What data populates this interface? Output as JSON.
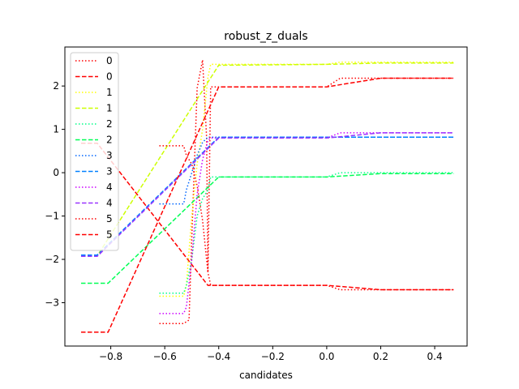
{
  "chart_data": {
    "type": "line",
    "title": "robust_z_duals",
    "xlabel": "candidates",
    "ylabel": "",
    "xlim": [
      -0.97,
      0.52
    ],
    "ylim": [
      -4.0,
      2.9
    ],
    "xticks": [
      -0.8,
      -0.6,
      -0.4,
      -0.2,
      0.0,
      0.2,
      0.4
    ],
    "xtick_labels": [
      "−0.8",
      "−0.6",
      "−0.4",
      "−0.2",
      "0.0",
      "0.2",
      "0.4"
    ],
    "yticks": [
      -3,
      -2,
      -1,
      0,
      1,
      2
    ],
    "ytick_labels": [
      "−3",
      "−2",
      "−1",
      "0",
      "1",
      "2"
    ],
    "legend_position": "upper-left",
    "series": [
      {
        "name": "0",
        "style": "dotted",
        "color": "#ff0000",
        "x": [
          -0.62,
          -0.53,
          -0.51,
          -0.5,
          -0.48,
          -0.46,
          -0.445,
          -0.44,
          -0.43,
          0.0,
          0.05,
          0.2,
          0.47
        ],
        "y": [
          -3.48,
          -3.48,
          -3.4,
          -1.5,
          1.95,
          2.6,
          0.8,
          -2.3,
          -2.6,
          -2.6,
          -2.7,
          -2.7,
          -2.7
        ]
      },
      {
        "name": "0",
        "style": "dashed",
        "color": "#ff0000",
        "x": [
          -0.91,
          -0.85,
          -0.44,
          0.0,
          0.2,
          0.47
        ],
        "y": [
          0.68,
          0.68,
          -2.6,
          -2.6,
          -2.7,
          -2.7
        ]
      },
      {
        "name": "1",
        "style": "dotted",
        "color": "#ffff00",
        "x": [
          -0.62,
          -0.53,
          -0.52,
          -0.5,
          -0.48,
          -0.46,
          -0.44,
          -0.43,
          0.0,
          0.05,
          0.2,
          0.47
        ],
        "y": [
          -2.85,
          -2.85,
          -2.6,
          -1.0,
          0.2,
          1.0,
          2.2,
          2.5,
          2.5,
          2.55,
          2.55,
          2.55
        ]
      },
      {
        "name": "1",
        "style": "dashed",
        "color": "#ccff00",
        "x": [
          -0.91,
          -0.85,
          -0.4,
          0.0,
          0.2,
          0.47
        ],
        "y": [
          -1.92,
          -1.92,
          2.48,
          2.5,
          2.53,
          2.53
        ]
      },
      {
        "name": "2",
        "style": "dotted",
        "color": "#00ff88",
        "x": [
          -0.62,
          -0.53,
          -0.52,
          -0.5,
          -0.48,
          -0.46,
          -0.44,
          -0.43,
          0.0,
          0.05,
          0.2,
          0.47
        ],
        "y": [
          -2.78,
          -2.78,
          -2.6,
          -2.0,
          -1.0,
          -0.6,
          -0.4,
          -0.1,
          -0.1,
          0.0,
          0.0,
          0.0
        ]
      },
      {
        "name": "2",
        "style": "dashed",
        "color": "#00ff55",
        "x": [
          -0.91,
          -0.81,
          -0.4,
          0.0,
          0.2,
          0.47
        ],
        "y": [
          -2.55,
          -2.55,
          -0.1,
          -0.1,
          -0.02,
          -0.02
        ]
      },
      {
        "name": "3",
        "style": "dotted",
        "color": "#0066ff",
        "x": [
          -0.62,
          -0.53,
          -0.52,
          -0.5,
          -0.48,
          -0.46,
          -0.44,
          -0.43,
          0.0,
          0.05,
          0.47
        ],
        "y": [
          -0.72,
          -0.72,
          -0.4,
          0.0,
          0.4,
          0.7,
          0.82,
          0.82,
          0.82,
          0.82,
          0.82
        ]
      },
      {
        "name": "3",
        "style": "dashed",
        "color": "#0080ff",
        "x": [
          -0.91,
          -0.85,
          -0.4,
          0.0,
          0.47
        ],
        "y": [
          -1.9,
          -1.9,
          0.82,
          0.82,
          0.82
        ]
      },
      {
        "name": "4",
        "style": "dotted",
        "color": "#cc00ff",
        "x": [
          -0.62,
          -0.53,
          -0.52,
          -0.5,
          -0.48,
          -0.46,
          -0.44,
          -0.43,
          0.0,
          0.05,
          0.2,
          0.47
        ],
        "y": [
          -3.25,
          -3.25,
          -3.1,
          -2.0,
          -0.5,
          0.3,
          0.75,
          0.8,
          0.8,
          0.92,
          0.92,
          0.92
        ]
      },
      {
        "name": "4",
        "style": "dashed",
        "color": "#9933ff",
        "x": [
          -0.91,
          -0.85,
          -0.4,
          0.0,
          0.2,
          0.47
        ],
        "y": [
          -1.93,
          -1.93,
          0.8,
          0.8,
          0.92,
          0.92
        ]
      },
      {
        "name": "5",
        "style": "dotted",
        "color": "#ff0000",
        "x": [
          -0.62,
          -0.53,
          -0.52,
          -0.5,
          -0.48,
          -0.46,
          -0.44,
          -0.43,
          0.0,
          0.05,
          0.2,
          0.47
        ],
        "y": [
          0.62,
          0.62,
          0.4,
          0.2,
          -0.3,
          -1.1,
          -2.3,
          1.98,
          1.98,
          2.18,
          2.18,
          2.18
        ]
      },
      {
        "name": "5",
        "style": "dashed",
        "color": "#ff0000",
        "x": [
          -0.91,
          -0.81,
          -0.4,
          0.0,
          0.2,
          0.47
        ],
        "y": [
          -3.68,
          -3.68,
          1.98,
          1.98,
          2.18,
          2.18
        ]
      }
    ]
  }
}
